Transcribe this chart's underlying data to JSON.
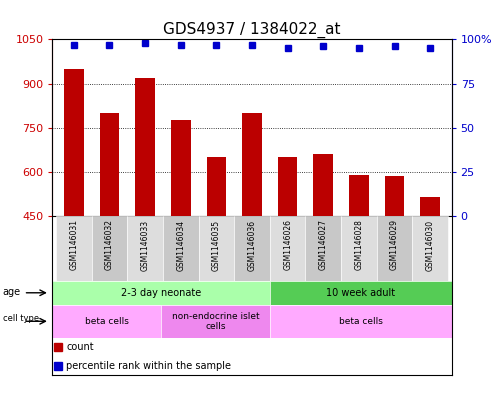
{
  "title": "GDS4937 / 1384022_at",
  "samples": [
    "GSM1146031",
    "GSM1146032",
    "GSM1146033",
    "GSM1146034",
    "GSM1146035",
    "GSM1146036",
    "GSM1146026",
    "GSM1146027",
    "GSM1146028",
    "GSM1146029",
    "GSM1146030"
  ],
  "counts": [
    950,
    800,
    920,
    775,
    650,
    800,
    650,
    660,
    590,
    585,
    515
  ],
  "percentiles": [
    97,
    97,
    98,
    97,
    97,
    97,
    95,
    96,
    95,
    96,
    95
  ],
  "ylim_left": [
    450,
    1050
  ],
  "ylim_right": [
    0,
    100
  ],
  "yticks_left": [
    450,
    600,
    750,
    900,
    1050
  ],
  "yticks_right": [
    0,
    25,
    50,
    75,
    100
  ],
  "ytick_labels_left": [
    "450",
    "600",
    "750",
    "900",
    "1050"
  ],
  "ytick_labels_right": [
    "0",
    "25",
    "50",
    "75",
    "100%"
  ],
  "bar_color": "#BB0000",
  "dot_color": "#0000CC",
  "grid_color": "#000000",
  "grid_yticks": [
    600,
    750,
    900
  ],
  "age_groups": [
    {
      "label": "2-3 day neonate",
      "start": 0,
      "end": 5,
      "color": "#AAFFAA"
    },
    {
      "label": "10 week adult",
      "start": 6,
      "end": 10,
      "color": "#55CC55"
    }
  ],
  "cell_type_groups": [
    {
      "label": "beta cells",
      "start": 0,
      "end": 2,
      "color": "#FFAAFF"
    },
    {
      "label": "non-endocrine islet\ncells",
      "start": 3,
      "end": 5,
      "color": "#EE88EE"
    },
    {
      "label": "beta cells",
      "start": 6,
      "end": 10,
      "color": "#FFAAFF"
    }
  ],
  "legend_count_label": "count",
  "legend_percentile_label": "percentile rank within the sample",
  "title_fontsize": 11,
  "axis_label_color_left": "#CC0000",
  "axis_label_color_right": "#0000CC",
  "tick_fontsize": 8,
  "sample_fontsize": 5.5,
  "row_fontsize": 7,
  "legend_fontsize": 7
}
